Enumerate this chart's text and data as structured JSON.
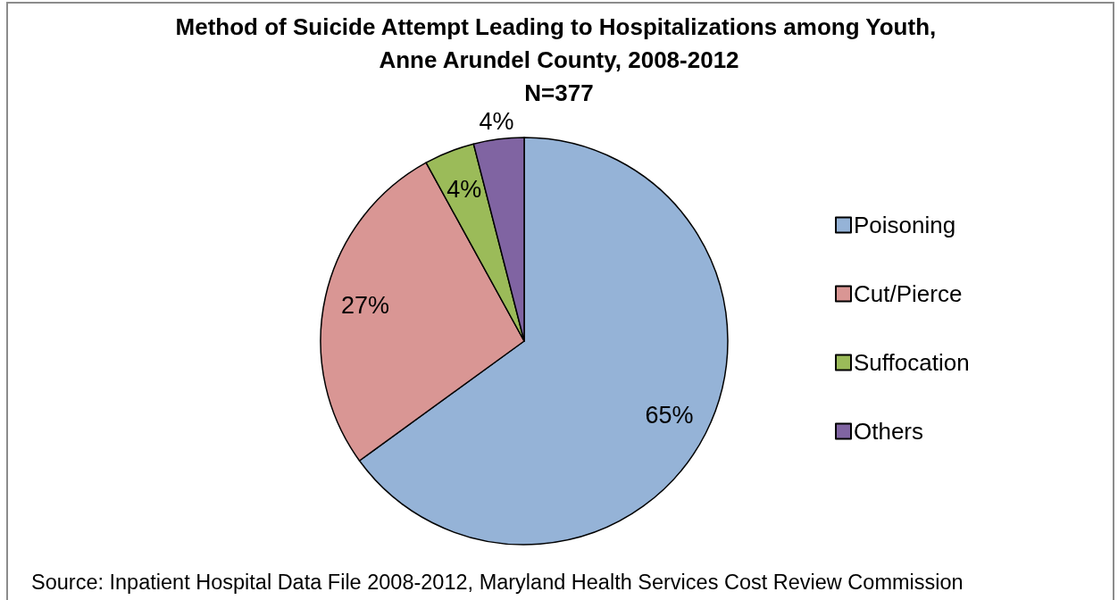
{
  "chart_data": {
    "type": "pie",
    "title": "Method of Suicide Attempt Leading to Hospitalizations among Youth, Anne Arundel County, 2008-2012",
    "subtitle": "N=377",
    "categories": [
      "Poisoning",
      "Cut/Pierce",
      "Suffocation",
      "Others"
    ],
    "values": [
      65,
      27,
      4,
      4
    ],
    "colors": [
      "#95b3d7",
      "#d99694",
      "#9bbb59",
      "#8064a2"
    ],
    "value_labels": [
      "65%",
      "27%",
      "4%",
      "4%"
    ],
    "legend": "right",
    "annotations": [
      "Source: Inpatient Hospital Data File 2008-2012, Maryland Health Services Cost Review Commission"
    ]
  }
}
